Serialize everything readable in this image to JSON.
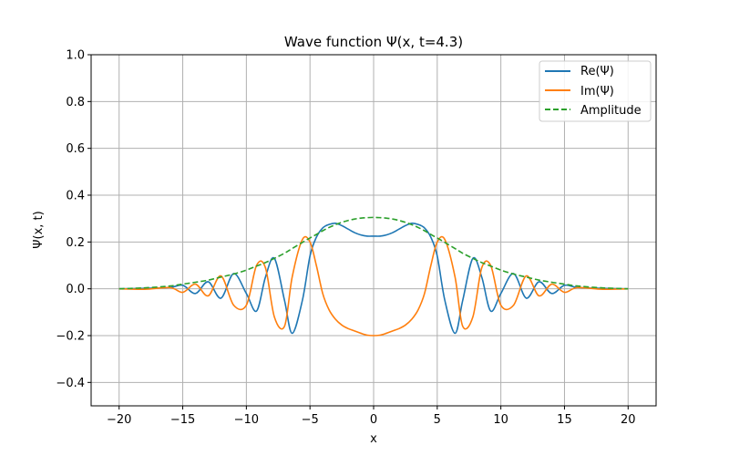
{
  "chart_data": {
    "type": "line",
    "title": "Wave function Ψ(x, t=4.3)",
    "xlabel": "x",
    "ylabel": "Ψ(x, t)",
    "xlim": [
      -22.2,
      22.2
    ],
    "ylim": [
      -0.5,
      1.0
    ],
    "xticks": [
      -20,
      -15,
      -10,
      -5,
      0,
      5,
      10,
      15,
      20
    ],
    "xtick_labels": [
      "−20",
      "−15",
      "−10",
      "−5",
      "0",
      "5",
      "10",
      "15",
      "20"
    ],
    "yticks": [
      -0.4,
      -0.2,
      0.0,
      0.2,
      0.4,
      0.6,
      0.8,
      1.0
    ],
    "ytick_labels": [
      "−0.4",
      "−0.2",
      "0.0",
      "0.2",
      "0.4",
      "0.6",
      "0.8",
      "1.0"
    ],
    "grid": true,
    "legend_position": "top-right",
    "x": [
      -20,
      -18,
      -16,
      -15,
      -14,
      -13,
      -12,
      -11,
      -10,
      -9.2,
      -8.5,
      -7.8,
      -7,
      -6.4,
      -5.6,
      -5,
      -4.5,
      -4,
      -3.5,
      -3,
      -2.5,
      -2,
      -1.5,
      -1,
      -0.5,
      0,
      0.5,
      1,
      1.5,
      2,
      2.5,
      3,
      3.5,
      4,
      4.5,
      5,
      5.6,
      6.4,
      7,
      7.8,
      8.5,
      9.2,
      10,
      11,
      12,
      13,
      14,
      15,
      16,
      18,
      20
    ],
    "series": [
      {
        "name": "Re(Ψ)",
        "color": "#1f77b4",
        "style": "solid",
        "values": [
          0.0,
          0.002,
          0.006,
          0.015,
          -0.02,
          0.03,
          -0.04,
          0.065,
          -0.02,
          -0.095,
          0.05,
          0.13,
          -0.05,
          -0.19,
          -0.05,
          0.14,
          0.22,
          0.26,
          0.275,
          0.28,
          0.27,
          0.255,
          0.24,
          0.23,
          0.225,
          0.225,
          0.225,
          0.23,
          0.24,
          0.255,
          0.27,
          0.28,
          0.275,
          0.26,
          0.22,
          0.14,
          -0.05,
          -0.19,
          -0.05,
          0.13,
          0.05,
          -0.095,
          -0.02,
          0.065,
          -0.04,
          0.03,
          -0.02,
          0.015,
          0.006,
          0.002,
          0.0
        ]
      },
      {
        "name": "Im(Ψ)",
        "color": "#ff7f0e",
        "style": "solid",
        "values": [
          0.0,
          -0.002,
          0.005,
          -0.015,
          0.02,
          -0.03,
          0.055,
          -0.07,
          -0.07,
          0.1,
          0.09,
          -0.12,
          -0.16,
          0.05,
          0.21,
          0.2,
          0.1,
          -0.02,
          -0.09,
          -0.13,
          -0.155,
          -0.17,
          -0.18,
          -0.19,
          -0.198,
          -0.2,
          -0.198,
          -0.19,
          -0.18,
          -0.17,
          -0.155,
          -0.13,
          -0.09,
          -0.02,
          0.1,
          0.2,
          0.21,
          0.05,
          -0.16,
          -0.12,
          0.09,
          0.1,
          -0.07,
          -0.07,
          0.055,
          -0.03,
          0.02,
          -0.015,
          0.005,
          -0.002,
          0.0
        ]
      },
      {
        "name": "Amplitude",
        "color": "#2ca02c",
        "style": "dashed",
        "values": [
          0.0,
          0.004,
          0.012,
          0.02,
          0.028,
          0.037,
          0.05,
          0.063,
          0.08,
          0.097,
          0.112,
          0.13,
          0.152,
          0.172,
          0.198,
          0.217,
          0.232,
          0.248,
          0.262,
          0.274,
          0.284,
          0.292,
          0.298,
          0.302,
          0.304,
          0.305,
          0.304,
          0.302,
          0.298,
          0.292,
          0.284,
          0.274,
          0.262,
          0.248,
          0.232,
          0.217,
          0.198,
          0.172,
          0.152,
          0.13,
          0.112,
          0.097,
          0.08,
          0.063,
          0.05,
          0.037,
          0.028,
          0.02,
          0.012,
          0.004,
          0.0
        ]
      }
    ]
  }
}
